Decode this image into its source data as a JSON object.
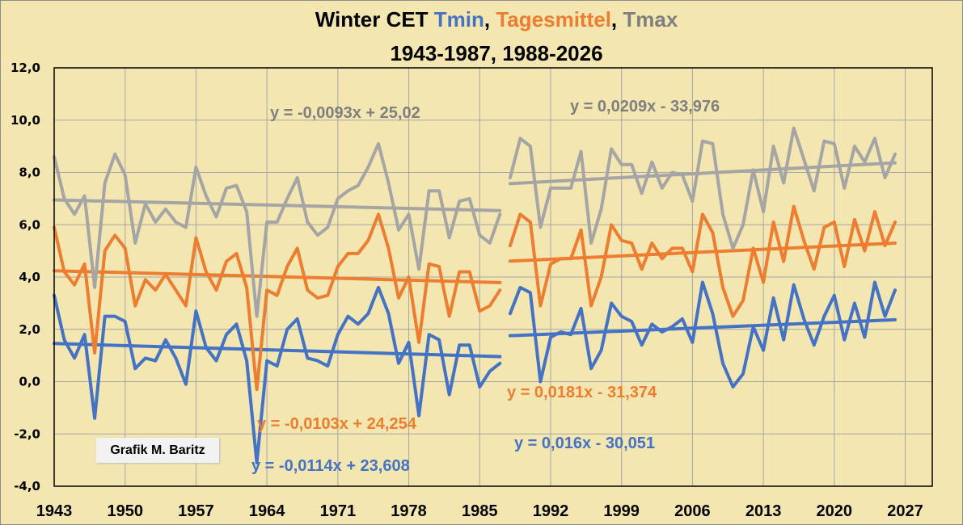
{
  "chart_data": {
    "type": "line",
    "title_parts": [
      {
        "text": "Winter CET ",
        "color": "#000000"
      },
      {
        "text": "Tmin",
        "color": "#4472c4"
      },
      {
        "text": ", ",
        "color": "#000000"
      },
      {
        "text": "Tagesmittel",
        "color": "#ed7d31"
      },
      {
        "text": ", ",
        "color": "#000000"
      },
      {
        "text": "Tmax",
        "color": "#7f7f7f"
      }
    ],
    "subtitle": "1943-1987, 1988-2026",
    "xlabel": "",
    "ylabel": "",
    "xlim": [
      1943,
      2030
    ],
    "ylim": [
      -4,
      12
    ],
    "grid": true,
    "xticks": [
      1943,
      1950,
      1957,
      1964,
      1971,
      1978,
      1985,
      1992,
      1999,
      2006,
      2013,
      2020,
      2027
    ],
    "xtick_labels": [
      "1943",
      "1950",
      "1957",
      "1964",
      "1971",
      "1978",
      "1985",
      "1992",
      "1999",
      "2006",
      "2013",
      "2020",
      "2027"
    ],
    "yticks": [
      12,
      10,
      8,
      6,
      4,
      2,
      0,
      -2,
      -4
    ],
    "ytick_labels": [
      "12,0",
      "10,0",
      "8,0",
      "6,0",
      "4,0",
      "2,0",
      "0,0",
      "-2,0",
      "-4,0"
    ],
    "periods": [
      {
        "start": 1943,
        "end": 1987
      },
      {
        "start": 1988,
        "end": 2026
      }
    ],
    "series": [
      {
        "name": "Tmax",
        "color": "#a5a5a5",
        "periods": [
          {
            "x_start": 1943,
            "values": [
              8.6,
              7.0,
              6.4,
              7.1,
              3.6,
              7.6,
              8.7,
              7.9,
              5.3,
              6.8,
              6.1,
              6.6,
              6.1,
              5.9,
              8.2,
              7.1,
              6.3,
              7.4,
              7.5,
              6.5,
              2.5,
              6.1,
              6.1,
              7.0,
              7.8,
              6.1,
              5.6,
              5.9,
              7.0,
              7.3,
              7.5,
              8.2,
              9.1,
              7.6,
              5.8,
              6.4,
              4.3,
              7.3,
              7.3,
              5.5,
              6.9,
              7.0,
              5.6,
              5.3,
              6.4
            ],
            "trend": {
              "slope": -0.0093,
              "intercept": 25.02,
              "label": "y = -0,0093x + 25,02"
            }
          },
          {
            "x_start": 1988,
            "values": [
              7.8,
              9.3,
              9.0,
              5.9,
              7.4,
              7.4,
              7.4,
              8.8,
              5.3,
              6.6,
              8.9,
              8.3,
              8.3,
              7.2,
              8.4,
              7.4,
              8.0,
              7.9,
              6.9,
              9.2,
              9.1,
              6.4,
              5.1,
              6.0,
              8.1,
              6.5,
              9.0,
              7.6,
              9.7,
              8.5,
              7.3,
              9.2,
              9.1,
              7.4,
              9.0,
              8.4,
              9.3,
              7.8,
              8.7
            ],
            "trend": {
              "slope": 0.0209,
              "intercept": -33.976,
              "label": "y = 0,0209x - 33,976"
            }
          }
        ],
        "label_color": "#7f7f7f"
      },
      {
        "name": "Tagesmittel",
        "color": "#ed7d31",
        "periods": [
          {
            "x_start": 1943,
            "values": [
              5.9,
              4.2,
              3.7,
              4.5,
              1.1,
              5.0,
              5.6,
              5.1,
              2.9,
              3.9,
              3.5,
              4.1,
              3.5,
              2.9,
              5.5,
              4.2,
              3.5,
              4.6,
              4.9,
              3.6,
              -0.3,
              3.5,
              3.3,
              4.4,
              5.1,
              3.5,
              3.2,
              3.3,
              4.4,
              4.9,
              4.9,
              5.4,
              6.4,
              5.1,
              3.2,
              4.0,
              1.5,
              4.5,
              4.4,
              2.5,
              4.2,
              4.2,
              2.7,
              2.9,
              3.5
            ],
            "trend": {
              "slope": -0.0103,
              "intercept": 24.254,
              "label": "y = -0,0103x + 24,254"
            }
          },
          {
            "x_start": 1988,
            "values": [
              5.2,
              6.4,
              6.1,
              2.9,
              4.5,
              4.7,
              4.7,
              5.8,
              2.9,
              4.0,
              6.0,
              5.4,
              5.3,
              4.3,
              5.3,
              4.7,
              5.1,
              5.1,
              4.2,
              6.4,
              5.7,
              3.6,
              2.5,
              3.1,
              5.1,
              3.8,
              6.1,
              4.6,
              6.7,
              5.4,
              4.3,
              5.9,
              6.1,
              4.4,
              6.2,
              5.0,
              6.5,
              5.2,
              6.1
            ],
            "trend": {
              "slope": 0.0181,
              "intercept": -31.374,
              "label": "y = 0,0181x - 31,374"
            }
          }
        ],
        "label_color": "#ed7d31"
      },
      {
        "name": "Tmin",
        "color": "#4472c4",
        "periods": [
          {
            "x_start": 1943,
            "values": [
              3.3,
              1.6,
              0.9,
              1.8,
              -1.4,
              2.5,
              2.5,
              2.3,
              0.5,
              0.9,
              0.8,
              1.6,
              0.9,
              -0.1,
              2.7,
              1.3,
              0.8,
              1.8,
              2.2,
              0.8,
              -3.1,
              0.8,
              0.6,
              2.0,
              2.4,
              0.9,
              0.8,
              0.6,
              1.8,
              2.5,
              2.2,
              2.6,
              3.6,
              2.6,
              0.7,
              1.5,
              -1.3,
              1.8,
              1.6,
              -0.5,
              1.4,
              1.4,
              -0.2,
              0.4,
              0.7
            ],
            "trend": {
              "slope": -0.0114,
              "intercept": 23.608,
              "label": "y = -0,0114x + 23,608"
            }
          },
          {
            "x_start": 1988,
            "values": [
              2.6,
              3.6,
              3.4,
              0.0,
              1.7,
              1.9,
              1.8,
              2.8,
              0.5,
              1.2,
              3.0,
              2.5,
              2.3,
              1.4,
              2.2,
              1.9,
              2.1,
              2.4,
              1.5,
              3.8,
              2.6,
              0.7,
              -0.2,
              0.3,
              2.1,
              1.2,
              3.2,
              1.6,
              3.7,
              2.4,
              1.4,
              2.5,
              3.3,
              1.6,
              3.0,
              1.7,
              3.8,
              2.5,
              3.5
            ],
            "trend": {
              "slope": 0.016,
              "intercept": -30.051,
              "label": "y = 0,016x - 30,051"
            }
          }
        ],
        "label_color": "#4472c4"
      }
    ],
    "annotations": {
      "tmax_left": "y = -0,0093x + 25,02",
      "tmax_right": "y = 0,0209x - 33,976",
      "mean_left": "y = -0,0103x + 24,254",
      "mean_right": "y = 0,0181x - 31,374",
      "tmin_left": "y = -0,0114x + 23,608",
      "tmin_right": "y = 0,016x - 30,051"
    }
  },
  "credit": "Grafik M. Baritz",
  "colors": {
    "background": "#f3e6b0",
    "grid": "#a6a6a6",
    "axis": "#000000"
  }
}
